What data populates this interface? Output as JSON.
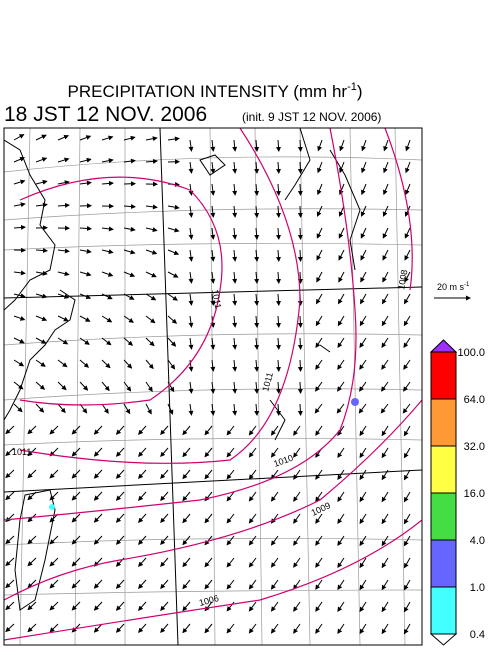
{
  "header": {
    "title": "PRECIPITATION INTENSITY (mm hr",
    "title_sup": "-1",
    "title_end": ")",
    "valid_time": "18 JST 12 NOV. 2006",
    "init_time": "(init. 9 JST 12 NOV. 2006)"
  },
  "vector_scale": {
    "label": "20 m s",
    "sup": "-1"
  },
  "colorbar": {
    "levels": [
      "100.0",
      "64.0",
      "32.0",
      "16.0",
      "4.0",
      "1.0",
      "0.4"
    ],
    "colors": [
      "#9b30ff",
      "#ff0000",
      "#ff9933",
      "#ffff44",
      "#44dd44",
      "#6666ff",
      "#44ffff",
      "#ffffff"
    ]
  },
  "contours": [
    {
      "label": "1011"
    },
    {
      "label": "1008"
    },
    {
      "label": "1011"
    },
    {
      "label": "1011"
    },
    {
      "label": "1010"
    },
    {
      "label": "1009"
    },
    {
      "label": "1006"
    }
  ]
}
